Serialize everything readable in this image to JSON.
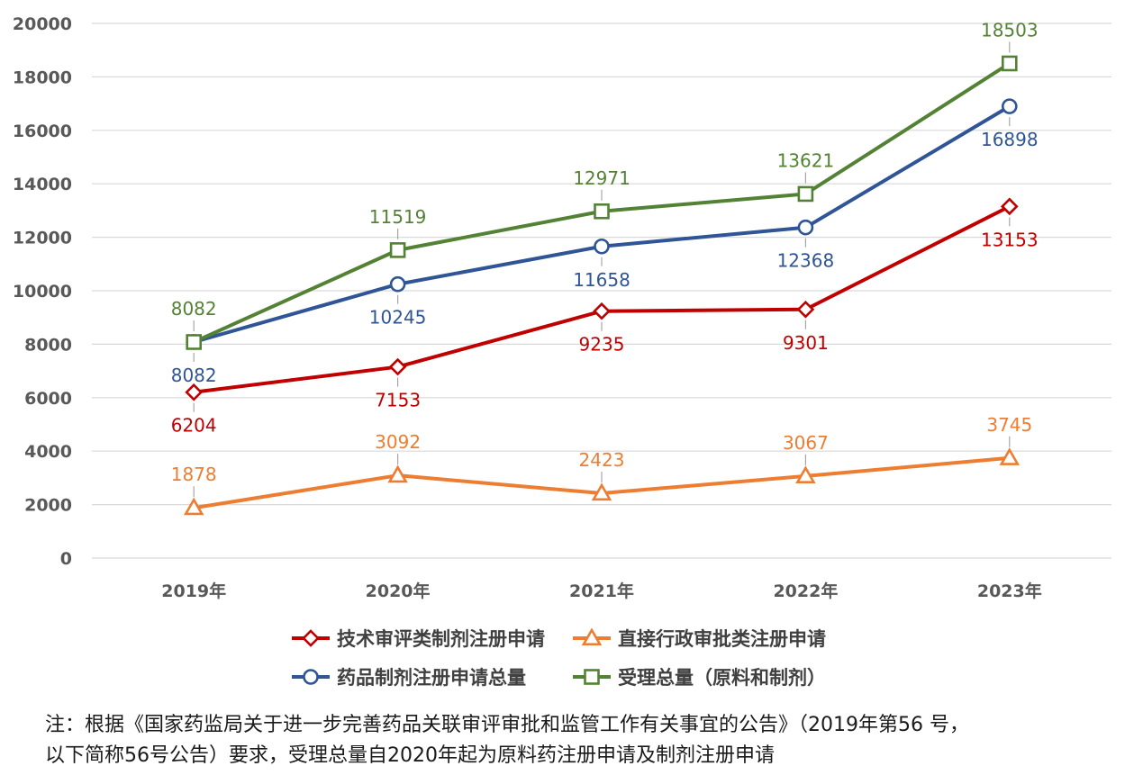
{
  "chart_data": {
    "type": "line",
    "categories": [
      "2019年",
      "2020年",
      "2021年",
      "2022年",
      "2023年"
    ],
    "ylim": [
      0,
      20000
    ],
    "yticks": [
      "0",
      "2000",
      "4000",
      "6000",
      "8000",
      "10000",
      "12000",
      "14000",
      "16000",
      "18000",
      "20000"
    ],
    "grid": true,
    "legend_position": "bottom",
    "series": [
      {
        "name": "技术审评类制剂注册申请",
        "values": [
          6204,
          7153,
          9235,
          9301,
          13153
        ],
        "color": "#c00000",
        "marker": "diamond",
        "labels": [
          "6204",
          "7153",
          "9235",
          "9301",
          "13153"
        ],
        "label_pos": "below"
      },
      {
        "name": "直接行政审批类注册申请",
        "values": [
          1878,
          3092,
          2423,
          3067,
          3745
        ],
        "color": "#ed7d31",
        "marker": "triangle",
        "labels": [
          "1878",
          "3092",
          "2423",
          "3067",
          "3745"
        ],
        "label_pos": "above"
      },
      {
        "name": "药品制剂注册申请总量",
        "values": [
          8082,
          10245,
          11658,
          12368,
          16898
        ],
        "color": "#2f5597",
        "marker": "circle",
        "labels": [
          "8082",
          "10245",
          "11658",
          "12368",
          "16898"
        ],
        "label_pos": "below"
      },
      {
        "name": "受理总量（原料和制剂）",
        "values": [
          8082,
          11519,
          12971,
          13621,
          18503
        ],
        "color": "#548235",
        "marker": "square",
        "labels": [
          "8082",
          "11519",
          "12971",
          "13621",
          "18503"
        ],
        "label_pos": "above"
      }
    ]
  },
  "note": {
    "line1": "注：根据《国家药监局关于进一步完善药品关联审评审批和监管工作有关事宜的公告》（2019年第56 号，",
    "line2": "以下简称56号公告）要求，受理总量自2020年起为原料药注册申请及制剂注册申请"
  }
}
